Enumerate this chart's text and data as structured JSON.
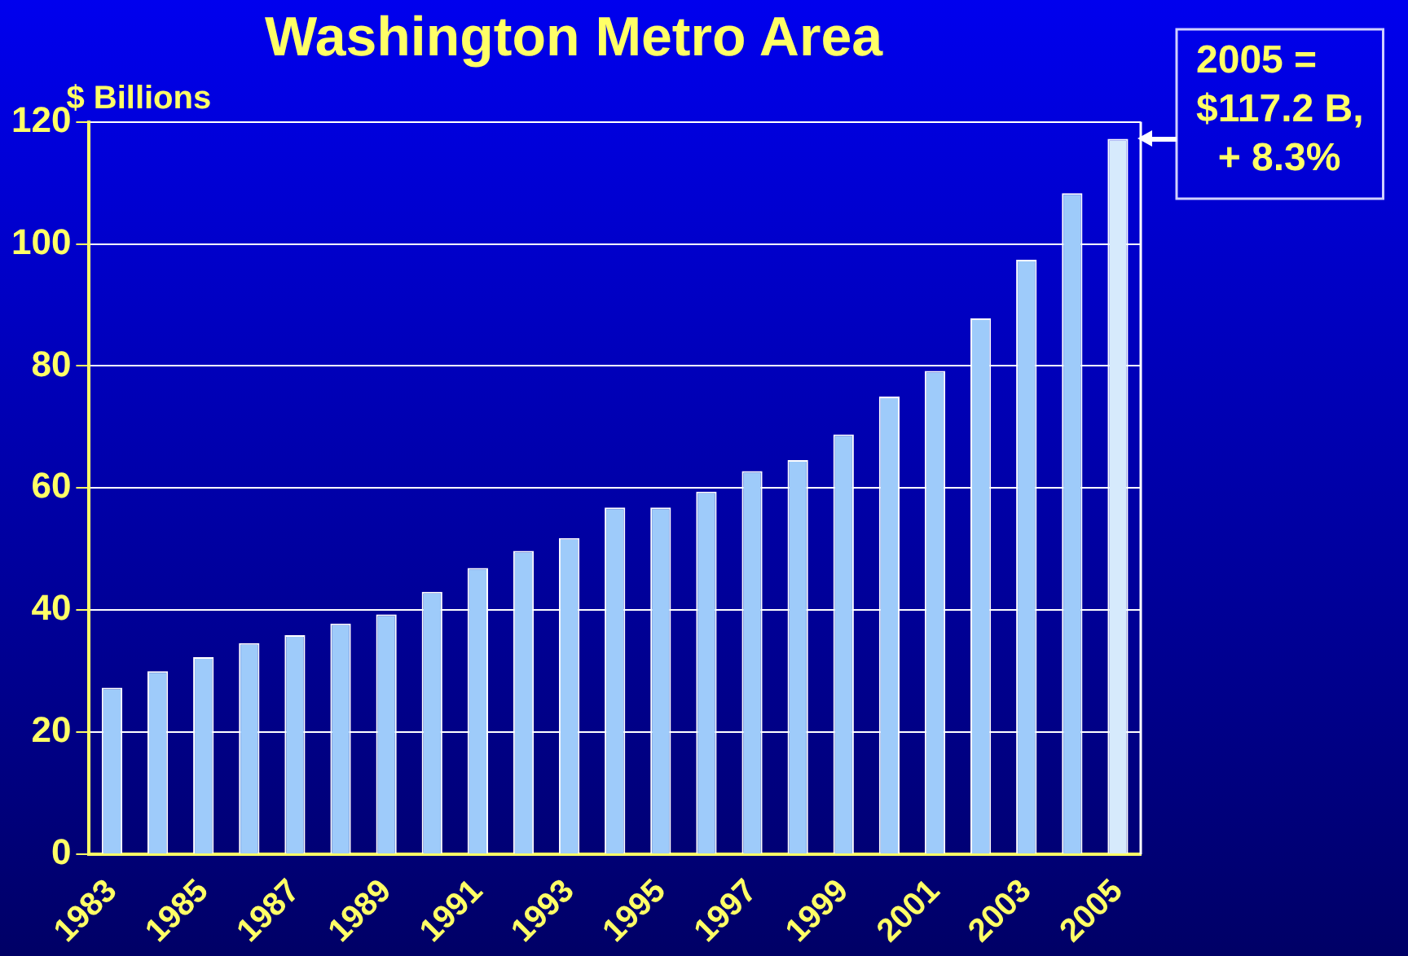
{
  "chart_data": {
    "type": "bar",
    "title": "Washington Metro Area",
    "ylabel": "$ Billions",
    "categories": [
      "1983",
      null,
      "1985",
      null,
      "1987",
      null,
      "1989",
      null,
      "1991",
      null,
      "1993",
      null,
      "1995",
      null,
      "1997",
      null,
      "1999",
      null,
      "2001",
      null,
      "2003",
      null,
      "2005"
    ],
    "values": [
      27.3,
      30,
      32.3,
      34.6,
      35.9,
      37.8,
      39.3,
      43,
      46.9,
      49.7,
      51.8,
      56.8,
      56.8,
      59.4,
      62.8,
      64.6,
      68.8,
      75,
      79.2,
      87.8,
      97.4,
      108.3,
      117.2
    ],
    "colors": [
      "#9ecbfa",
      "#9ecbfa",
      "#9ecbfa",
      "#9ecbfa",
      "#9ecbfa",
      "#9ecbfa",
      "#9ecbfa",
      "#9ecbfa",
      "#9ecbfa",
      "#9ecbfa",
      "#9ecbfa",
      "#9ecbfa",
      "#9ecbfa",
      "#9ecbfa",
      "#9ecbfa",
      "#9ecbfa",
      "#9ecbfa",
      "#9ecbfa",
      "#9ecbfa",
      "#9ecbfa",
      "#9ecbfa",
      "#9ecbfa",
      "#d6eafc"
    ],
    "ylim": [
      0,
      120
    ],
    "yticks": [
      0,
      20,
      40,
      60,
      80,
      100,
      120
    ],
    "grid": "y",
    "annotations": [
      {
        "text": "2005 =\n$117.2 B,\n  + 8.3%",
        "x": "2005",
        "y": 117.2
      }
    ]
  }
}
